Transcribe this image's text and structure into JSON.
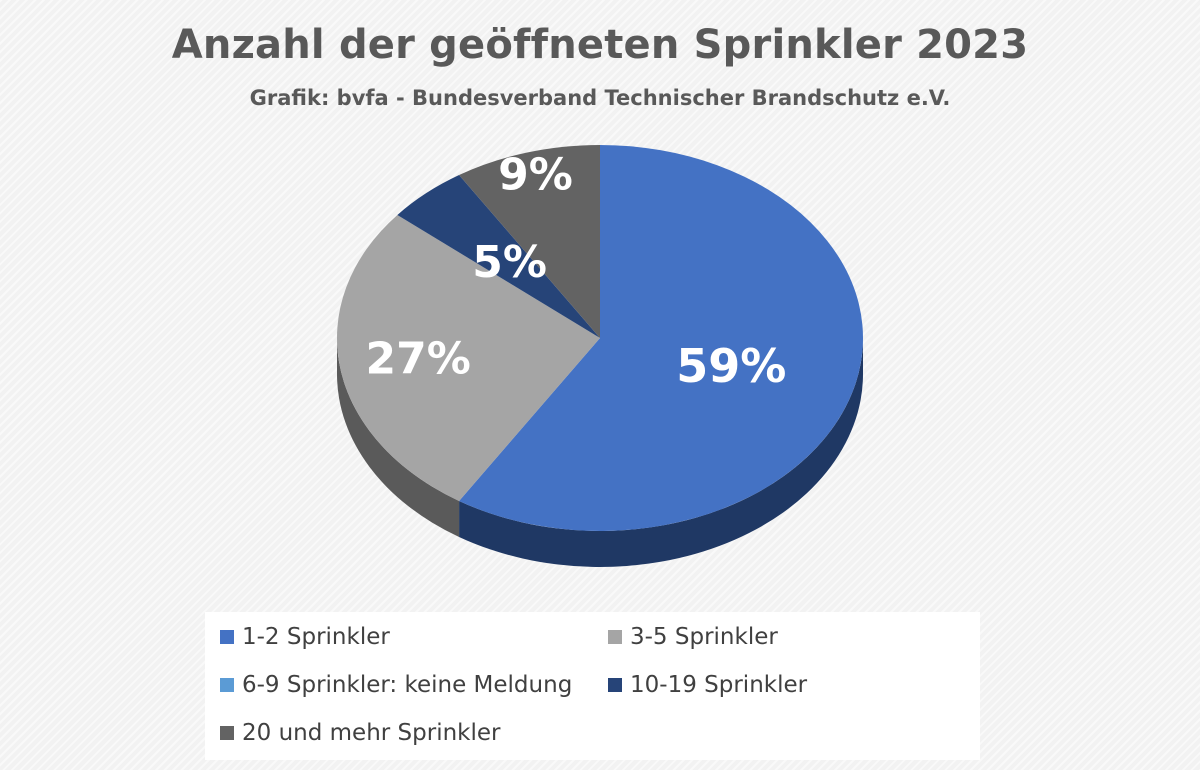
{
  "chart_data": {
    "type": "pie",
    "title": "Anzahl der geöffneten Sprinkler 2023",
    "subtitle": "Grafik: bvfa - Bundesverband Technischer Brandschutz e.V.",
    "legend_position": "bottom",
    "slices": [
      {
        "label": "1-2 Sprinkler",
        "value": 59,
        "value_label": "59%",
        "color": "#4472C4",
        "side_color": "#1F3864"
      },
      {
        "label": "3-5 Sprinkler",
        "value": 27,
        "value_label": "27%",
        "color": "#A5A5A5",
        "side_color": "#5A5A5A"
      },
      {
        "label": "6-9 Sprinkler: keine Meldung",
        "value": 0,
        "value_label": "",
        "color": "#5B9BD5",
        "side_color": "#2E5D8A"
      },
      {
        "label": "10-19 Sprinkler",
        "value": 5,
        "value_label": "5%",
        "color": "#264478",
        "side_color": "#142544"
      },
      {
        "label": "20 und mehr Sprinkler",
        "value": 9,
        "value_label": "9%",
        "color": "#636363",
        "side_color": "#3A3A3A"
      }
    ]
  }
}
